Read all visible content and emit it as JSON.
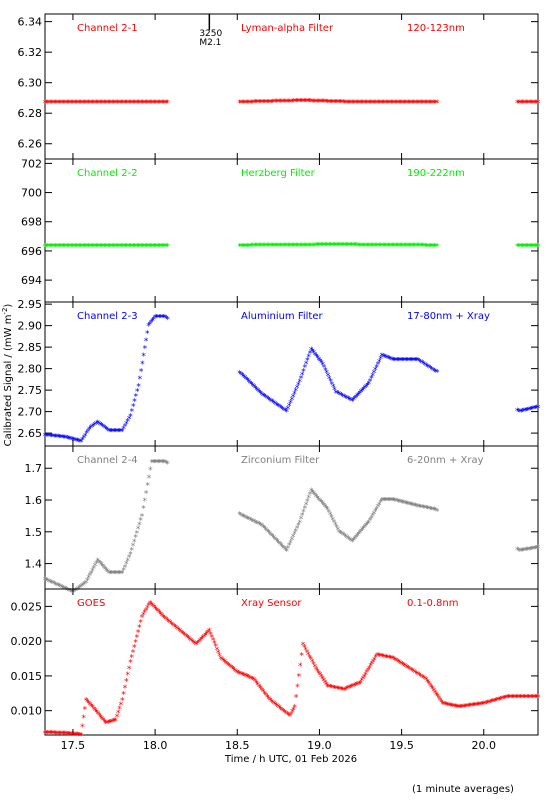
{
  "chart_data": {
    "type": "scatter",
    "xlabel": "Time / h UTC, 01 Feb 2026",
    "ylabel": "Calibrated Signal / (mW m^-2)",
    "footnote": "(1 minute averages)",
    "xlim": [
      17.33,
      20.33
    ],
    "x_ticks": [
      "17.5",
      "18.0",
      "18.5",
      "19.0",
      "19.5",
      "20.0"
    ],
    "event_marker": {
      "x": 18.33,
      "label_top": "3250",
      "label_bottom": "M2.1"
    },
    "panels": [
      {
        "name": "Channel 2-1",
        "filter": "Lyman-alpha Filter",
        "band": "120-123nm",
        "color": "#ff0000",
        "ylim": [
          6.25,
          6.345
        ],
        "y_ticks": [
          "6.26",
          "6.28",
          "6.30",
          "6.32",
          "6.34"
        ],
        "points": [
          [
            17.33,
            6.287
          ],
          [
            18.06,
            6.287
          ],
          [
            18.53,
            6.287
          ],
          [
            18.9,
            6.288
          ],
          [
            19.2,
            6.287
          ],
          [
            19.7,
            6.287
          ],
          [
            20.22,
            6.287
          ],
          [
            20.33,
            6.287
          ]
        ],
        "gaps": [
          [
            18.08,
            18.51
          ],
          [
            19.72,
            20.2
          ]
        ]
      },
      {
        "name": "Channel 2-2",
        "filter": "Herzberg Filter",
        "band": "190-222nm",
        "color": "#00ee00",
        "ylim": [
          692.5,
          702.3
        ],
        "y_ticks": [
          "694",
          "696",
          "698",
          "700",
          "702"
        ],
        "points": [
          [
            17.33,
            696.35
          ],
          [
            18.06,
            696.35
          ],
          [
            18.53,
            696.35
          ],
          [
            19.1,
            696.4
          ],
          [
            19.7,
            696.35
          ],
          [
            20.22,
            696.35
          ],
          [
            20.33,
            696.35
          ]
        ],
        "gaps": [
          [
            18.08,
            18.51
          ],
          [
            19.72,
            20.2
          ]
        ]
      },
      {
        "name": "Channel 2-3",
        "filter": "Aluminium Filter",
        "band": "17-80nm + Xray",
        "color": "#0000ff",
        "ylim": [
          2.62,
          2.955
        ],
        "y_ticks": [
          "2.65",
          "2.70",
          "2.75",
          "2.80",
          "2.85",
          "2.90",
          "2.95"
        ],
        "points": [
          [
            17.33,
            2.645
          ],
          [
            17.45,
            2.64
          ],
          [
            17.55,
            2.63
          ],
          [
            17.6,
            2.66
          ],
          [
            17.65,
            2.675
          ],
          [
            17.72,
            2.655
          ],
          [
            17.8,
            2.655
          ],
          [
            17.85,
            2.69
          ],
          [
            17.9,
            2.76
          ],
          [
            17.96,
            2.9
          ],
          [
            18.0,
            2.92
          ],
          [
            18.06,
            2.92
          ],
          [
            18.53,
            2.785
          ],
          [
            18.65,
            2.74
          ],
          [
            18.8,
            2.7
          ],
          [
            18.88,
            2.77
          ],
          [
            18.95,
            2.845
          ],
          [
            19.02,
            2.81
          ],
          [
            19.1,
            2.745
          ],
          [
            19.2,
            2.725
          ],
          [
            19.3,
            2.765
          ],
          [
            19.38,
            2.83
          ],
          [
            19.45,
            2.82
          ],
          [
            19.6,
            2.82
          ],
          [
            19.7,
            2.795
          ],
          [
            20.22,
            2.7
          ],
          [
            20.33,
            2.71
          ]
        ],
        "gaps": [
          [
            18.08,
            18.51
          ],
          [
            19.72,
            20.2
          ]
        ]
      },
      {
        "name": "Channel 2-4",
        "filter": "Zirconium Filter",
        "band": "6-20nm + Xray",
        "color": "#808080",
        "ylim": [
          1.32,
          1.77
        ],
        "y_ticks": [
          "1.4",
          "1.5",
          "1.6",
          "1.7"
        ],
        "points": [
          [
            17.33,
            1.35
          ],
          [
            17.5,
            1.31
          ],
          [
            17.58,
            1.34
          ],
          [
            17.65,
            1.41
          ],
          [
            17.72,
            1.37
          ],
          [
            17.8,
            1.37
          ],
          [
            17.85,
            1.43
          ],
          [
            17.92,
            1.55
          ],
          [
            17.98,
            1.72
          ],
          [
            18.06,
            1.72
          ],
          [
            18.53,
            1.55
          ],
          [
            18.65,
            1.52
          ],
          [
            18.8,
            1.44
          ],
          [
            18.88,
            1.53
          ],
          [
            18.95,
            1.63
          ],
          [
            19.05,
            1.57
          ],
          [
            19.12,
            1.5
          ],
          [
            19.2,
            1.47
          ],
          [
            19.3,
            1.53
          ],
          [
            19.38,
            1.6
          ],
          [
            19.45,
            1.6
          ],
          [
            19.6,
            1.58
          ],
          [
            19.7,
            1.57
          ],
          [
            20.22,
            1.44
          ],
          [
            20.33,
            1.45
          ]
        ],
        "gaps": [
          [
            18.08,
            18.51
          ],
          [
            19.72,
            20.2
          ]
        ]
      },
      {
        "name": "GOES",
        "filter": "Xray Sensor",
        "band": "0.1-0.8nm",
        "color": "#ff0000",
        "ylim": [
          0.0065,
          0.0275
        ],
        "y_ticks": [
          "0.010",
          "0.015",
          "0.020",
          "0.025"
        ],
        "points": [
          [
            17.33,
            0.0068
          ],
          [
            17.45,
            0.0067
          ],
          [
            17.55,
            0.0065
          ],
          [
            17.58,
            0.0115
          ],
          [
            17.62,
            0.0105
          ],
          [
            17.7,
            0.0082
          ],
          [
            17.76,
            0.0086
          ],
          [
            17.8,
            0.0115
          ],
          [
            17.85,
            0.017
          ],
          [
            17.92,
            0.0235
          ],
          [
            17.97,
            0.0255
          ],
          [
            18.05,
            0.0235
          ],
          [
            18.15,
            0.0215
          ],
          [
            18.25,
            0.0195
          ],
          [
            18.33,
            0.0215
          ],
          [
            18.4,
            0.0175
          ],
          [
            18.5,
            0.0155
          ],
          [
            18.6,
            0.0145
          ],
          [
            18.7,
            0.0115
          ],
          [
            18.82,
            0.0092
          ],
          [
            18.85,
            0.0105
          ],
          [
            18.9,
            0.0195
          ],
          [
            18.98,
            0.016
          ],
          [
            19.05,
            0.0135
          ],
          [
            19.15,
            0.013
          ],
          [
            19.25,
            0.014
          ],
          [
            19.35,
            0.018
          ],
          [
            19.45,
            0.0175
          ],
          [
            19.55,
            0.016
          ],
          [
            19.65,
            0.0145
          ],
          [
            19.75,
            0.011
          ],
          [
            19.85,
            0.0105
          ],
          [
            20.0,
            0.011
          ],
          [
            20.15,
            0.012
          ],
          [
            20.33,
            0.012
          ]
        ],
        "gaps": []
      }
    ]
  }
}
